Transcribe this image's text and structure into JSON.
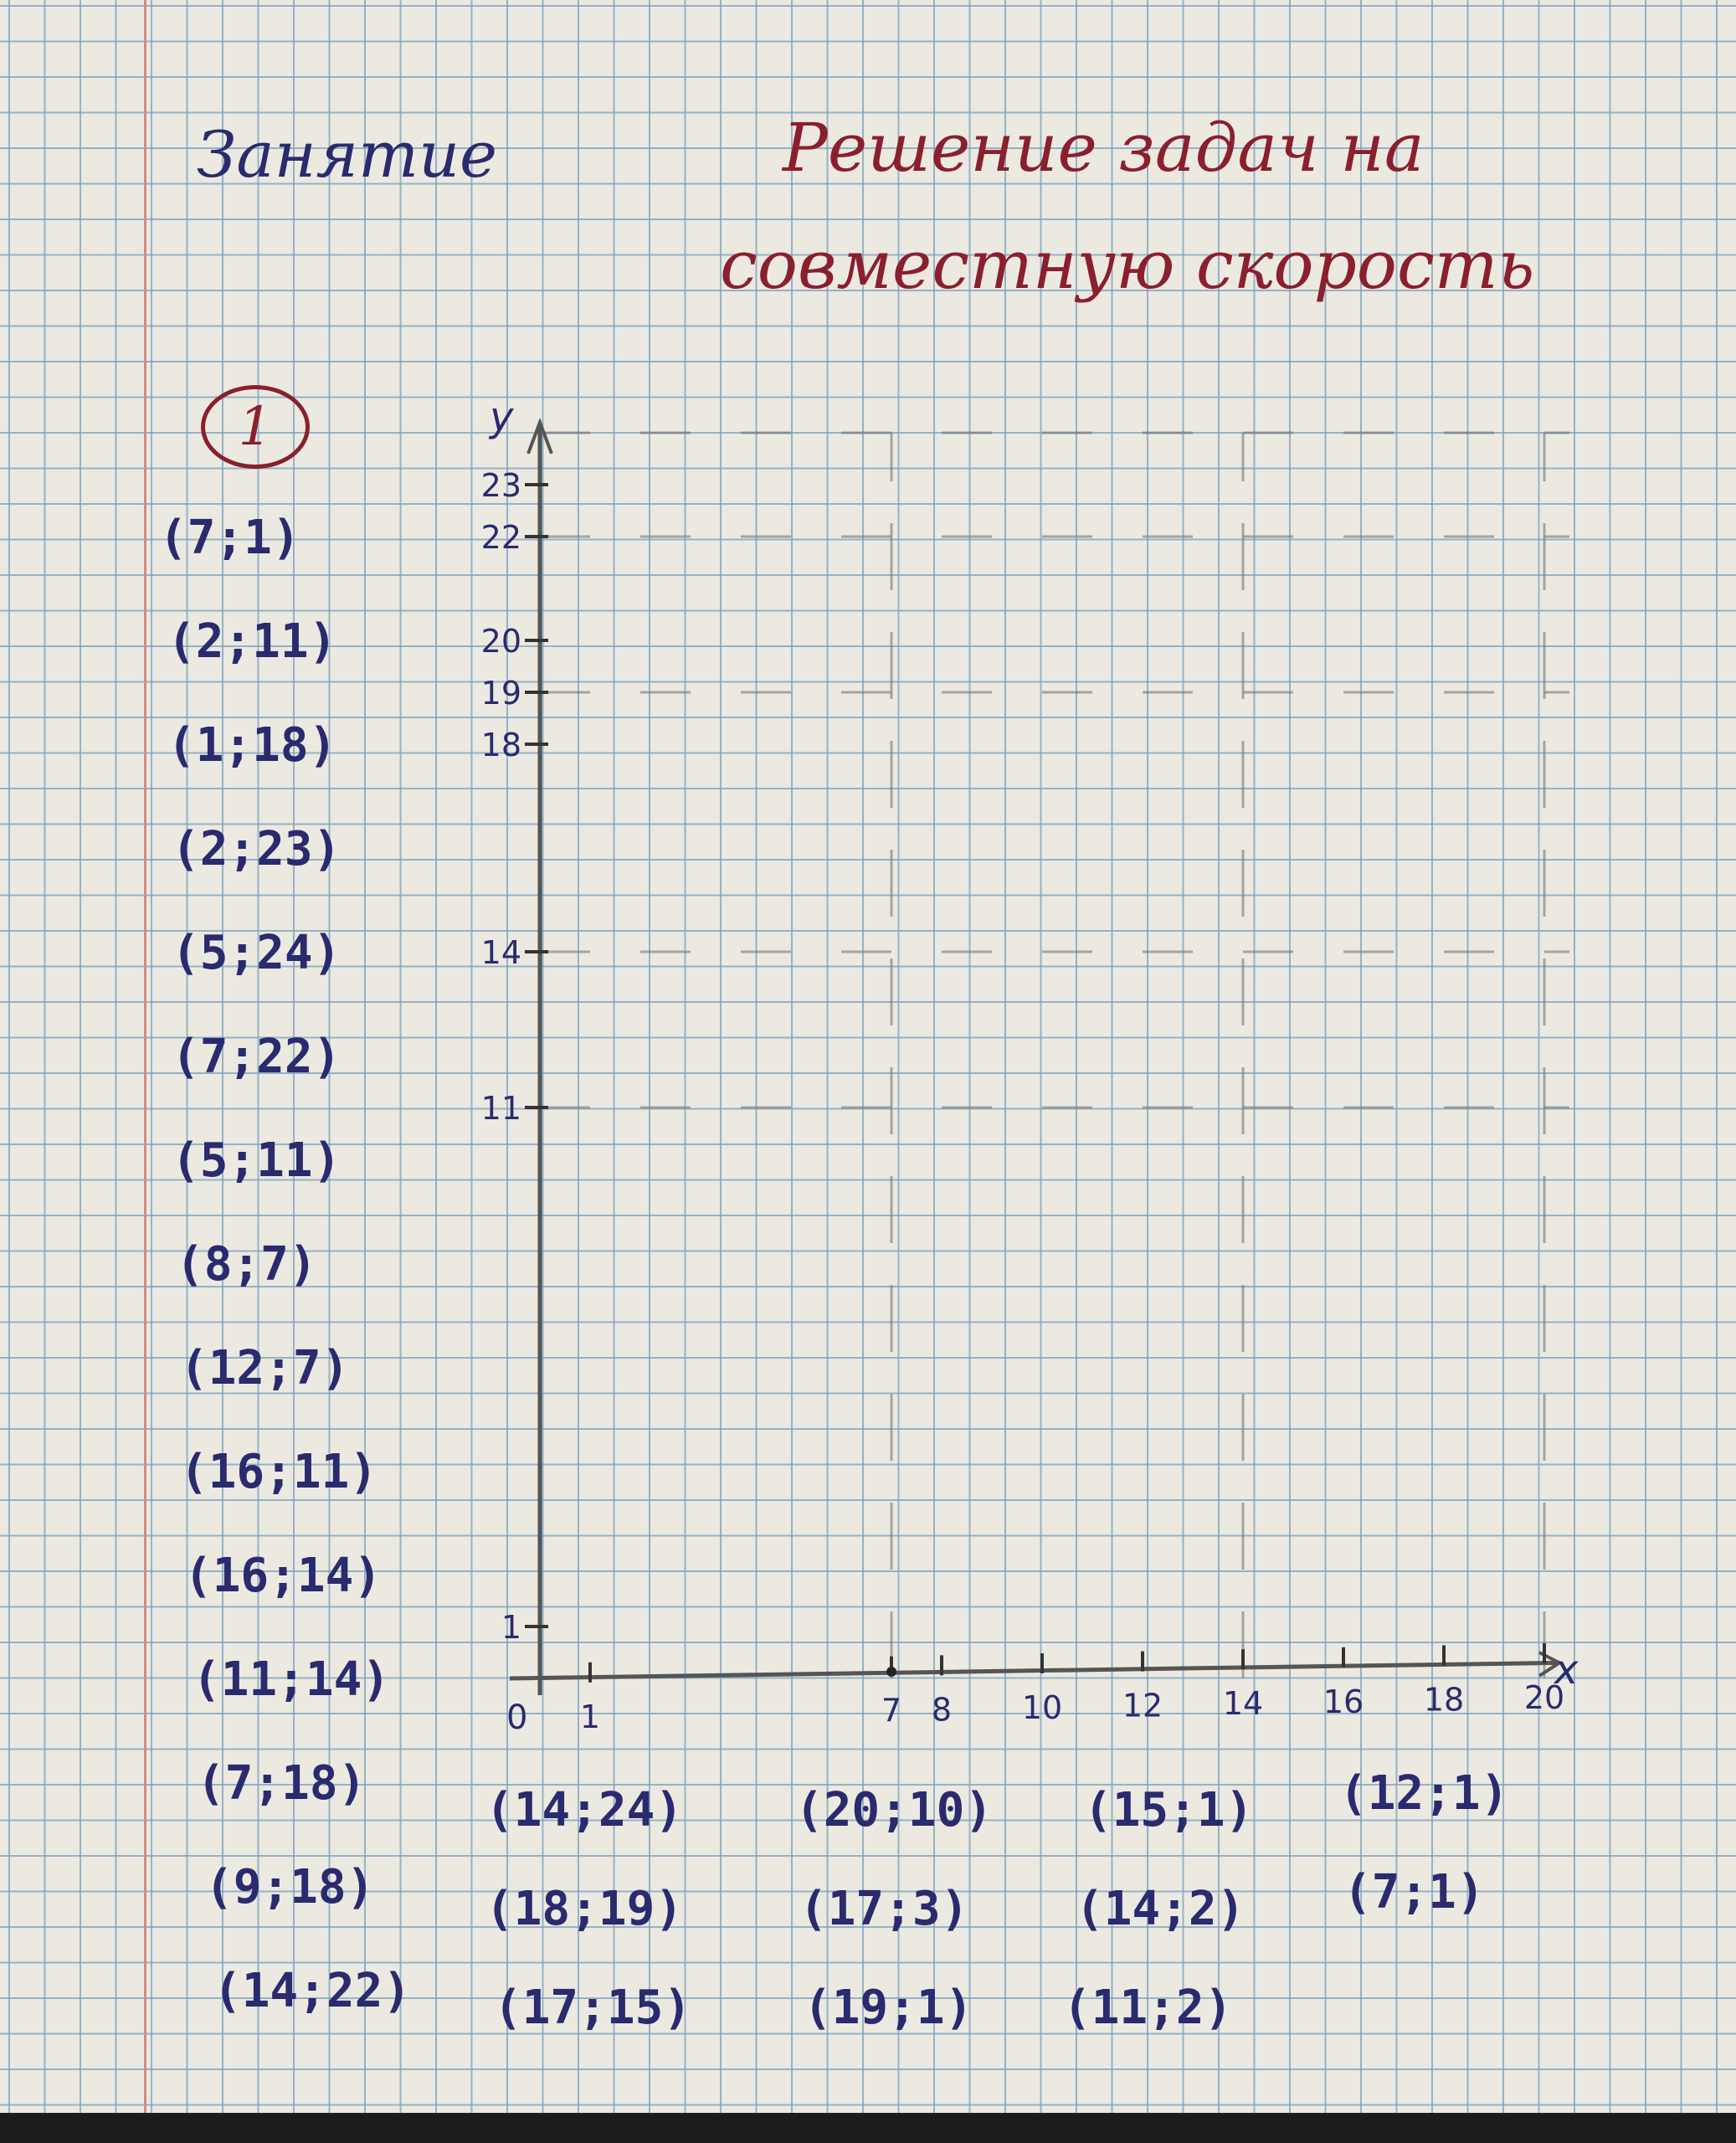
{
  "header": {
    "lesson_label": "Занятие",
    "title_line1": "Решение задач на",
    "title_line2": "совместную скорость"
  },
  "task": {
    "number": "1",
    "points_column1": [
      "(7;1)",
      "(2;11)",
      "(1;18)",
      "(2;23)",
      "(5;24)",
      "(7;22)",
      "(5;11)",
      "(8;7)",
      "(12;7)",
      "(16;11)",
      "(16;14)",
      "(11;14)",
      "(7;18)",
      "(9;18)",
      "(14;22)"
    ],
    "points_column2": [
      "(14;24)",
      "(18;19)",
      "(17;15)"
    ],
    "points_column3": [
      "(20;10)",
      "(17;3)",
      "(19;1)"
    ],
    "points_column4": [
      "(15;1)",
      "(14;2)",
      "(11;2)"
    ],
    "points_column5": [
      "(12;1)",
      "(7;1)"
    ]
  },
  "chart_data": {
    "type": "scatter",
    "xlabel": "x",
    "ylabel": "y",
    "origin_label": "0",
    "xlim": [
      0,
      20
    ],
    "ylim": [
      0,
      24
    ],
    "x_ticks": [
      1,
      7,
      8,
      10,
      12,
      14,
      16,
      18,
      20
    ],
    "y_ticks": [
      1,
      11,
      14,
      18,
      19,
      20,
      22,
      23
    ],
    "x_tick_labels": [
      "1",
      "7",
      "8",
      "10",
      "12",
      "14",
      "16",
      "18",
      "20"
    ],
    "y_tick_labels": [
      "1",
      "11",
      "14",
      "18",
      "19",
      "20",
      "22",
      "23"
    ],
    "dashed_guides_y": [
      24,
      22,
      19,
      14,
      11
    ],
    "dashed_guides_x": [
      7,
      14,
      20
    ],
    "grid": true,
    "axis_color": "#555555"
  }
}
